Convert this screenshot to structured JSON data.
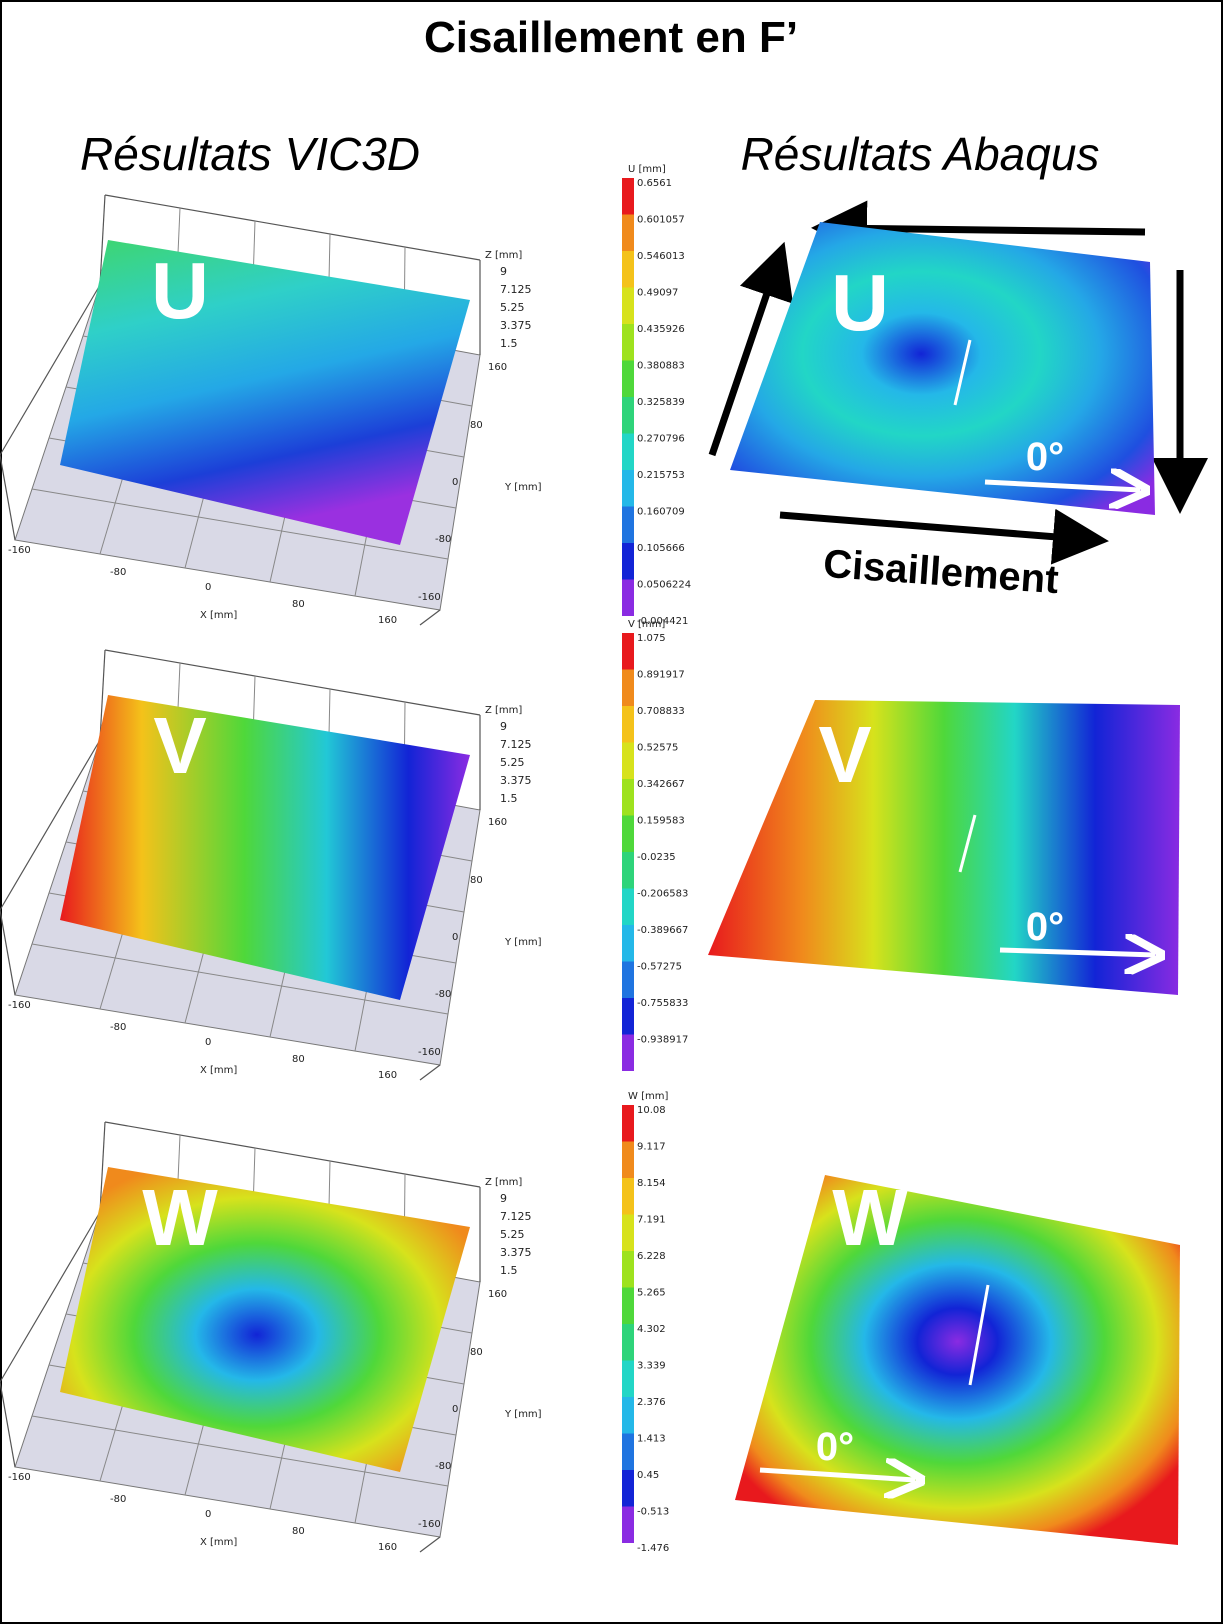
{
  "title": "Cisaillement en F’",
  "columns": [
    "Résultats VIC3D",
    "Résultats Abaqus"
  ],
  "axes": {
    "z_label": "Z [mm]",
    "z_ticks": [
      "9",
      "7.125",
      "5.25",
      "3.375",
      "1.5"
    ],
    "y_label": "Y [mm]",
    "y_ticks": [
      "160",
      "80",
      "0",
      "-80",
      "-160"
    ],
    "x_label": "X [mm]",
    "x_ticks": [
      "-160",
      "-80",
      "0",
      "80",
      "160"
    ]
  },
  "shear_label": "Cisaillement",
  "panels": [
    {
      "letter": "U",
      "scale_title": "U [mm]",
      "angle": "0°",
      "scale": [
        "0.6561",
        "0.601057",
        "0.546013",
        "0.49097",
        "0.435926",
        "0.380883",
        "0.325839",
        "0.270796",
        "0.215753",
        "0.160709",
        "0.105666",
        "0.0506224",
        "-0.004421"
      ]
    },
    {
      "letter": "V",
      "scale_title": "V [mm]",
      "angle": "0°",
      "scale": [
        "1.075",
        "0.891917",
        "0.708833",
        "0.52575",
        "0.342667",
        "0.159583",
        "-0.0235",
        "-0.206583",
        "-0.389667",
        "-0.57275",
        "-0.755833",
        "-0.938917"
      ]
    },
    {
      "letter": "W",
      "scale_title": "W [mm]",
      "angle": "0°",
      "scale": [
        "10.08",
        "9.117",
        "8.154",
        "7.191",
        "6.228",
        "5.265",
        "4.302",
        "3.339",
        "2.376",
        "1.413",
        "0.45",
        "-0.513",
        "-1.476"
      ]
    }
  ]
}
